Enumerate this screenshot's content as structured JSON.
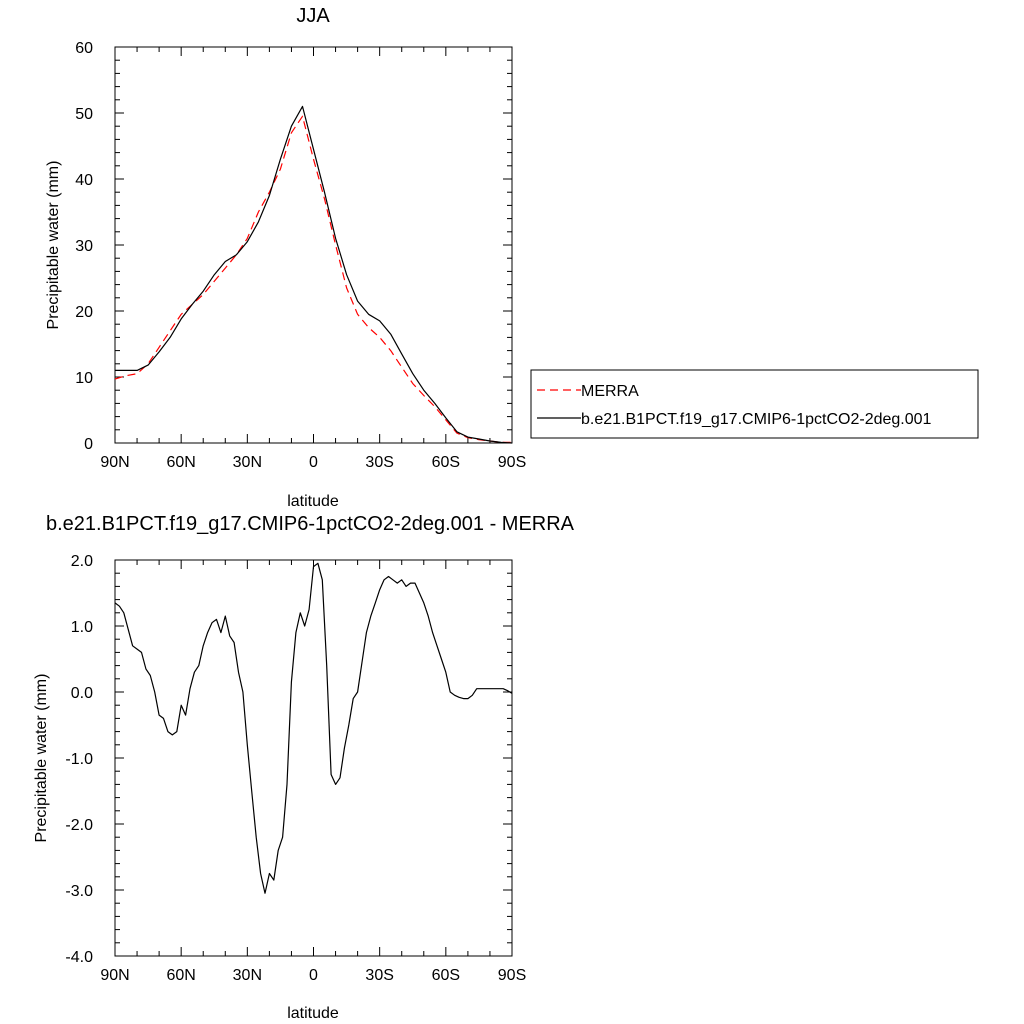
{
  "chart_data": [
    {
      "type": "line",
      "title": "JJA",
      "xlabel": "latitude",
      "ylabel": "Precipitable water (mm)",
      "xlim": [
        90,
        -90
      ],
      "ylim": [
        0,
        60
      ],
      "x_ticks": [
        90,
        60,
        30,
        0,
        -30,
        -60,
        -90
      ],
      "x_tick_labels": [
        "90N",
        "60N",
        "30N",
        "0",
        "30S",
        "60S",
        "90S"
      ],
      "y_ticks": [
        0,
        10,
        20,
        30,
        40,
        50,
        60
      ],
      "y_tick_labels": [
        "0",
        "10",
        "20",
        "30",
        "40",
        "50",
        "60"
      ],
      "legend_position": "right",
      "series": [
        {
          "name": "MERRA",
          "color": "#ff0000",
          "dash": "dashed",
          "x": [
            90,
            85,
            80,
            75,
            70,
            65,
            60,
            55,
            50,
            45,
            40,
            35,
            30,
            25,
            20,
            15,
            10,
            5,
            0,
            -5,
            -10,
            -15,
            -20,
            -25,
            -30,
            -35,
            -40,
            -45,
            -50,
            -55,
            -60,
            -65,
            -70,
            -75,
            -80,
            -85,
            -90
          ],
          "y": [
            9.7,
            10.2,
            10.5,
            12.0,
            14.5,
            17.0,
            19.5,
            21.0,
            22.5,
            24.5,
            26.5,
            28.5,
            31.0,
            35.0,
            38.0,
            41.5,
            47.0,
            49.5,
            43.0,
            37.0,
            30.0,
            23.5,
            19.5,
            17.5,
            16.0,
            14.0,
            11.5,
            9.0,
            7.2,
            5.5,
            3.5,
            1.5,
            0.8,
            0.5,
            0.3,
            0.1,
            0.1
          ]
        },
        {
          "name": "b.e21.B1PCT.f19_g17.CMIP6-1pctCO2-2deg.001",
          "color": "#000000",
          "dash": "solid",
          "x": [
            90,
            85,
            80,
            75,
            70,
            65,
            60,
            55,
            50,
            45,
            40,
            35,
            30,
            25,
            20,
            15,
            10,
            5,
            0,
            -5,
            -10,
            -15,
            -20,
            -25,
            -30,
            -35,
            -40,
            -45,
            -50,
            -55,
            -60,
            -65,
            -70,
            -75,
            -80,
            -85,
            -90
          ],
          "y": [
            11.0,
            11.0,
            11.0,
            11.8,
            13.8,
            16.0,
            18.8,
            21.0,
            23.0,
            25.5,
            27.5,
            28.5,
            30.5,
            33.5,
            37.5,
            43.0,
            48.0,
            51.0,
            44.5,
            38.0,
            31.0,
            25.5,
            21.5,
            19.5,
            18.5,
            16.5,
            13.5,
            10.5,
            8.0,
            6.0,
            3.8,
            1.7,
            0.9,
            0.6,
            0.3,
            0.1,
            0.0
          ]
        }
      ]
    },
    {
      "type": "line",
      "title": "b.e21.B1PCT.f19_g17.CMIP6-1pctCO2-2deg.001 - MERRA",
      "xlabel": "latitude",
      "ylabel": "Precipitable water (mm)",
      "xlim": [
        90,
        -90
      ],
      "ylim": [
        -4,
        2
      ],
      "x_ticks": [
        90,
        60,
        30,
        0,
        -30,
        -60,
        -90
      ],
      "x_tick_labels": [
        "90N",
        "60N",
        "30N",
        "0",
        "30S",
        "60S",
        "90S"
      ],
      "y_ticks": [
        2,
        1,
        0,
        -1,
        -2,
        -3,
        -4
      ],
      "y_tick_labels": [
        "2.0",
        "1.0",
        "0.0",
        "-1.0",
        "-2.0",
        "-3.0",
        "-4.0"
      ],
      "series": [
        {
          "color": "#000000",
          "dash": "solid",
          "x": [
            90,
            88,
            86,
            84,
            82,
            80,
            78,
            76,
            74,
            72,
            70,
            68,
            66,
            64,
            62,
            60,
            58,
            56,
            54,
            52,
            50,
            48,
            46,
            44,
            42,
            40,
            38,
            36,
            34,
            32,
            30,
            28,
            26,
            24,
            22,
            20,
            18,
            16,
            14,
            12,
            10,
            8,
            6,
            4,
            2,
            0,
            -2,
            -4,
            -6,
            -8,
            -10,
            -12,
            -14,
            -16,
            -18,
            -20,
            -22,
            -24,
            -26,
            -28,
            -30,
            -32,
            -34,
            -36,
            -38,
            -40,
            -42,
            -44,
            -46,
            -48,
            -50,
            -52,
            -54,
            -56,
            -58,
            -60,
            -62,
            -64,
            -66,
            -68,
            -70,
            -72,
            -74,
            -76,
            -78,
            -80,
            -82,
            -84,
            -86,
            -88,
            -90
          ],
          "y": [
            1.35,
            1.3,
            1.2,
            0.95,
            0.7,
            0.65,
            0.6,
            0.35,
            0.25,
            0.0,
            -0.35,
            -0.4,
            -0.6,
            -0.65,
            -0.6,
            -0.2,
            -0.35,
            0.05,
            0.3,
            0.4,
            0.7,
            0.9,
            1.05,
            1.1,
            0.9,
            1.15,
            0.85,
            0.75,
            0.3,
            0.0,
            -0.8,
            -1.5,
            -2.2,
            -2.75,
            -3.05,
            -2.75,
            -2.85,
            -2.4,
            -2.2,
            -1.4,
            0.15,
            0.9,
            1.2,
            1.0,
            1.25,
            1.9,
            1.95,
            1.7,
            0.4,
            -1.25,
            -1.4,
            -1.3,
            -0.85,
            -0.5,
            -0.1,
            0.0,
            0.45,
            0.9,
            1.15,
            1.35,
            1.55,
            1.7,
            1.75,
            1.7,
            1.65,
            1.7,
            1.6,
            1.65,
            1.65,
            1.5,
            1.35,
            1.15,
            0.9,
            0.7,
            0.5,
            0.3,
            0.0,
            -0.05,
            -0.08,
            -0.1,
            -0.1,
            -0.05,
            0.05,
            0.05,
            0.05,
            0.05,
            0.05,
            0.05,
            0.05,
            0.02,
            -0.02
          ]
        }
      ]
    }
  ]
}
